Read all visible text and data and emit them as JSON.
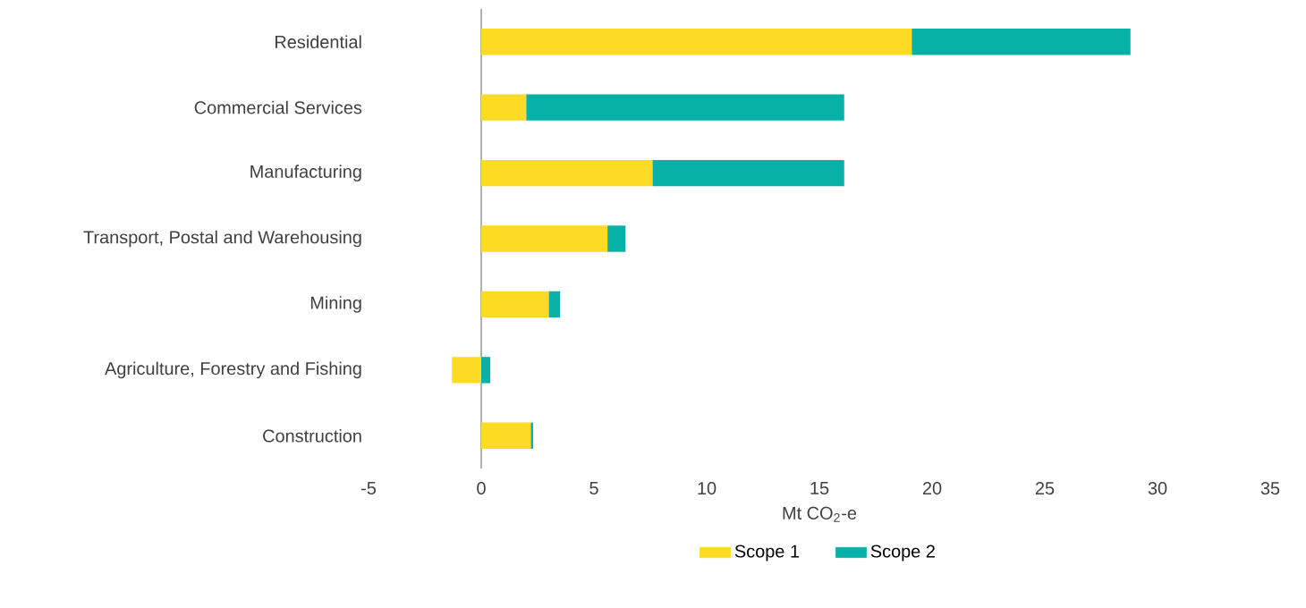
{
  "chart_data": {
    "type": "bar",
    "orientation": "horizontal",
    "stacked": true,
    "categories": [
      "Residential",
      "Commercial Services",
      "Manufacturing",
      "Transport, Postal and Warehousing",
      "Mining",
      "Agriculture, Forestry and Fishing",
      "Construction"
    ],
    "series": [
      {
        "name": "Scope 1",
        "color": "#fdda24",
        "values": [
          19.1,
          2.0,
          7.6,
          5.6,
          3.0,
          -1.3,
          2.2
        ]
      },
      {
        "name": "Scope 2",
        "color": "#07b1a8",
        "values": [
          9.7,
          14.1,
          8.5,
          0.8,
          0.5,
          0.4,
          0.1
        ]
      }
    ],
    "xlim": [
      -5,
      35
    ],
    "xticks": [
      -5,
      0,
      5,
      10,
      15,
      20,
      25,
      30,
      35
    ],
    "xlabel": "Mt CO$_{2}$-e",
    "legend": "bottom"
  }
}
